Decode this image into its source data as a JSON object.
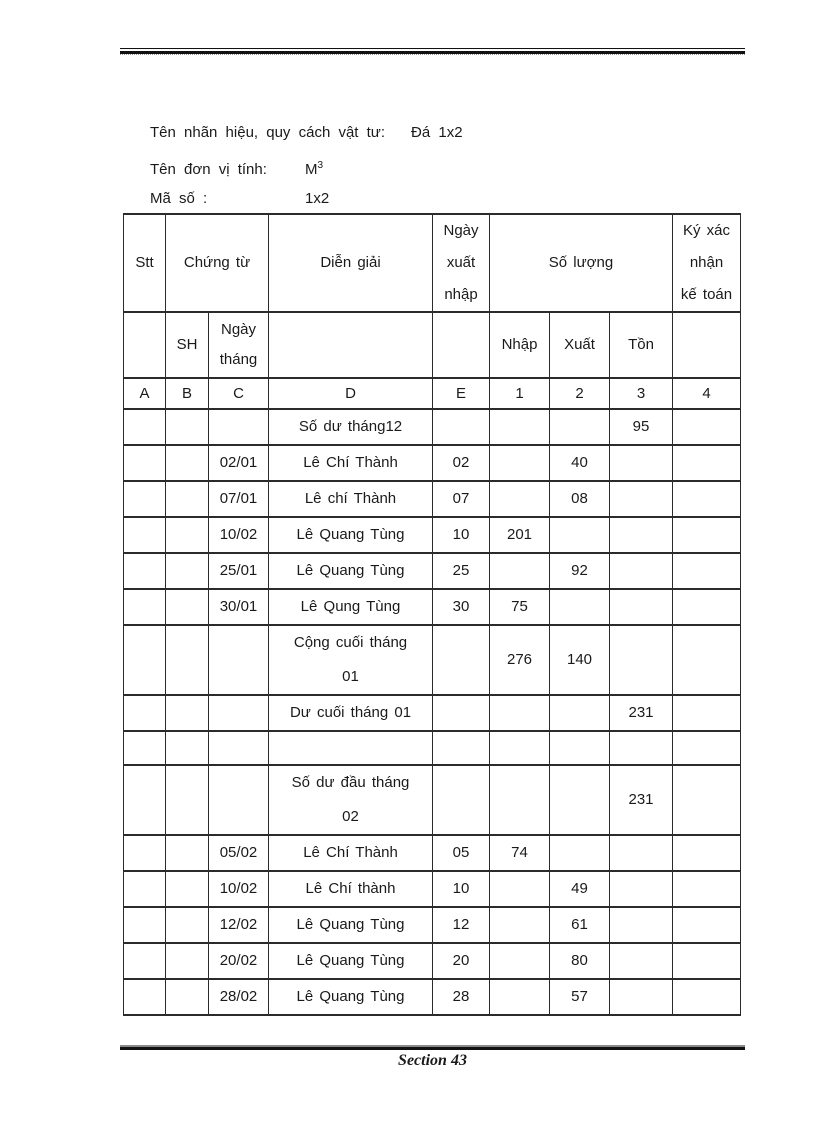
{
  "page": {
    "footer_text": "Section 43"
  },
  "info": {
    "lines": [
      {
        "label": "Tên nhãn hiệu, quy cách vật tư:",
        "value": "Đá 1x2"
      },
      {
        "label": "Tên đơn vị tính:",
        "value": "M",
        "value_sup": "3"
      },
      {
        "label": "Mã số :",
        "value": "1x2"
      }
    ]
  },
  "table": {
    "header_rows": [
      {
        "cells": [
          {
            "text": "Stt",
            "span": 1
          },
          {
            "text": "Chứng từ",
            "span": 2
          },
          {
            "text": "Diễn giải",
            "span": 1
          },
          {
            "text": "Ngày\nxuất\nnhập",
            "span": 1
          },
          {
            "text": "Số lượng",
            "span": 3
          },
          {
            "text": "Ký xác\nnhận\nkế toán",
            "span": 1
          }
        ]
      },
      {
        "cells": [
          {
            "text": "",
            "span": 1
          },
          {
            "text": "SH",
            "span": 1
          },
          {
            "text": "Ngày\ntháng",
            "span": 1
          },
          {
            "text": "",
            "span": 1
          },
          {
            "text": "",
            "span": 1
          },
          {
            "text": "Nhập",
            "span": 1
          },
          {
            "text": "Xuất",
            "span": 1
          },
          {
            "text": "Tồn",
            "span": 1
          },
          {
            "text": "",
            "span": 1
          }
        ]
      },
      {
        "cells": [
          {
            "text": "A",
            "span": 1
          },
          {
            "text": "B",
            "span": 1
          },
          {
            "text": "C",
            "span": 1
          },
          {
            "text": "D",
            "span": 1
          },
          {
            "text": "E",
            "span": 1
          },
          {
            "text": "1",
            "span": 1
          },
          {
            "text": "2",
            "span": 1
          },
          {
            "text": "3",
            "span": 1
          },
          {
            "text": "4",
            "span": 1
          }
        ]
      }
    ],
    "rows": [
      [
        "",
        "",
        "",
        "Số dư tháng12",
        "",
        "",
        "",
        "95",
        ""
      ],
      [
        "",
        "",
        "02/01",
        "Lê Chí Thành",
        "02",
        "",
        "40",
        "",
        ""
      ],
      [
        "",
        "",
        "07/01",
        "Lê chí Thành",
        "07",
        "",
        "08",
        "",
        ""
      ],
      [
        "",
        "",
        "10/02",
        "Lê Quang Tùng",
        "10",
        "201",
        "",
        "",
        ""
      ],
      [
        "",
        "",
        "25/01",
        "Lê Quang Tùng",
        "25",
        "",
        "92",
        "",
        ""
      ],
      [
        "",
        "",
        "30/01",
        "Lê Qung Tùng",
        "30",
        "75",
        "",
        "",
        ""
      ],
      [
        "",
        "",
        "",
        "Cộng cuối tháng\n01",
        "",
        "276",
        "140",
        "",
        ""
      ],
      [
        "",
        "",
        "",
        "Dư cuối tháng 01",
        "",
        "",
        "",
        "231",
        ""
      ],
      [
        "",
        "",
        "",
        "",
        "",
        "",
        "",
        "",
        ""
      ],
      [
        "",
        "",
        "",
        "Số dư đầu tháng\n02",
        "",
        "",
        "",
        "231",
        ""
      ],
      [
        "",
        "",
        "05/02",
        "Lê Chí Thành",
        "05",
        "74",
        "",
        "",
        ""
      ],
      [
        "",
        "",
        "10/02",
        "Lê Chí thành",
        "10",
        "",
        "49",
        "",
        ""
      ],
      [
        "",
        "",
        "12/02",
        "Lê Quang Tùng",
        "12",
        "",
        "61",
        "",
        ""
      ],
      [
        "",
        "",
        "20/02",
        "Lê Quang Tùng",
        "20",
        "",
        "80",
        "",
        ""
      ],
      [
        "",
        "",
        "28/02",
        "Lê Quang Tùng",
        "28",
        "",
        "57",
        "",
        ""
      ]
    ]
  }
}
